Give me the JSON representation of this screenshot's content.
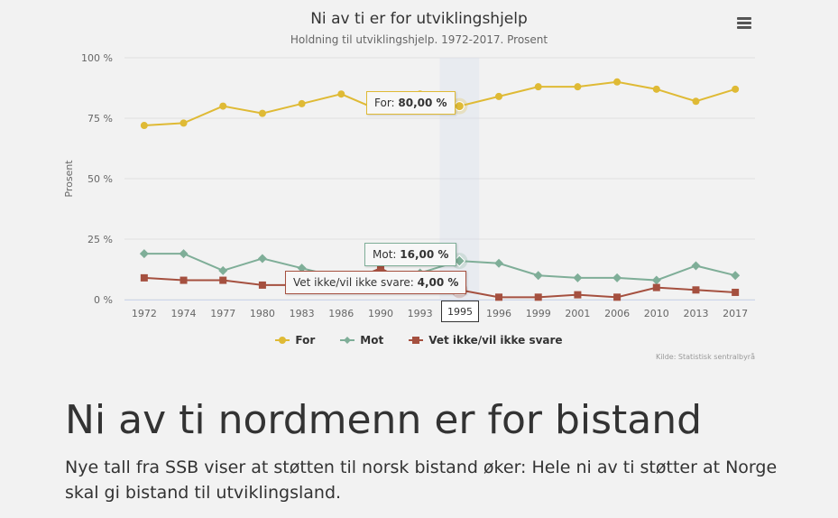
{
  "chart": {
    "title": "Ni av ti er for utviklingshjelp",
    "subtitle": "Holdning til utviklingshjelp. 1972-2017. Prosent",
    "menu_icon": "hamburger-menu-icon",
    "credit": "Kilde: Statistisk sentralbyrå",
    "tooltips": {
      "for": {
        "label": "For: ",
        "value": "80,00 %"
      },
      "mot": {
        "label": "Mot: ",
        "value": "16,00 %"
      },
      "vet": {
        "label": "Vet ikke/vil ikke svare: ",
        "value": "4,00 %"
      },
      "x_highlight": "1995"
    }
  },
  "chart_data": {
    "type": "line",
    "title": "Ni av ti er for utviklingshjelp",
    "subtitle": "Holdning til utviklingshjelp. 1972-2017. Prosent",
    "xlabel": "",
    "ylabel": "Prosent",
    "ylim": [
      0,
      100
    ],
    "yticks": [
      "0 %",
      "25 %",
      "50 %",
      "75 %",
      "100 %"
    ],
    "ytick_values": [
      0,
      25,
      50,
      75,
      100
    ],
    "categories": [
      "1972",
      "1974",
      "1977",
      "1980",
      "1983",
      "1986",
      "1990",
      "1993",
      "1995",
      "1996",
      "1999",
      "2001",
      "2006",
      "2010",
      "2013",
      "2017"
    ],
    "grid": true,
    "legend_position": "bottom",
    "series": [
      {
        "name": "For",
        "color": "#dfba35",
        "marker": "circle",
        "values": [
          72,
          73,
          80,
          77,
          81,
          85,
          78,
          85,
          80,
          84,
          88,
          88,
          90,
          87,
          82,
          87
        ]
      },
      {
        "name": "Mot",
        "color": "#7fae98",
        "marker": "diamond",
        "values": [
          19,
          19,
          12,
          17,
          13,
          9,
          9,
          11,
          16,
          15,
          10,
          9,
          9,
          8,
          14,
          10
        ]
      },
      {
        "name": "Vet ikke/vil ikke svare",
        "color": "#a5503f",
        "marker": "square",
        "values": [
          9,
          8,
          8,
          6,
          6,
          6,
          13,
          4,
          4,
          1,
          1,
          2,
          1,
          5,
          4,
          3
        ]
      }
    ]
  },
  "article": {
    "headline": "Ni av ti nordmenn er for bistand",
    "lead": "Nye tall fra SSB viser at støtten til norsk bistand øker: Hele ni av ti støtter at Norge skal gi bistand til utviklingsland."
  }
}
